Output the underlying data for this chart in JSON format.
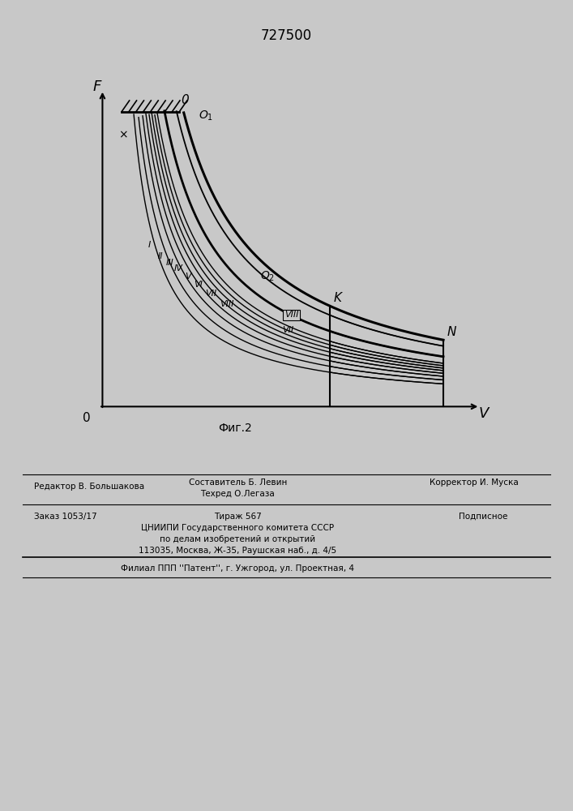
{
  "title": "727500",
  "fig_label": "Фиг.2",
  "bg_color": "#c8c8c8",
  "axis_label_F": "F",
  "axis_label_V": "V",
  "axis_label_O": "0",
  "label_0": "0",
  "label_O1": "O₁",
  "label_O2": "O₂",
  "label_K": "K",
  "label_N": "N",
  "roman_labels": [
    "I",
    "II",
    "III",
    "IV",
    "V",
    "VI",
    "VII",
    "VIII"
  ],
  "footer_line1_left": "Редактор В. Большакова",
  "footer_line1_center": "Составитель Б. Левин",
  "footer_line2_center": "Техред О.Легаза",
  "footer_line1_right": "Корректор И. Муска",
  "footer_order": "Заказ 1053/17",
  "footer_tirazh": "Тираж 567",
  "footer_podpisnoe": "Подписное",
  "footer_org1": "ЦНИИПИ Государственного комитета СССР",
  "footer_org2": "по делам изобретений и открытий",
  "footer_org3": "113035, Москва, Ж-35, Раушская наб., д. 4/5",
  "footer_filial": "Филиал ППП ''Патент'', г. Ужгород, ул. Проектная, 4"
}
